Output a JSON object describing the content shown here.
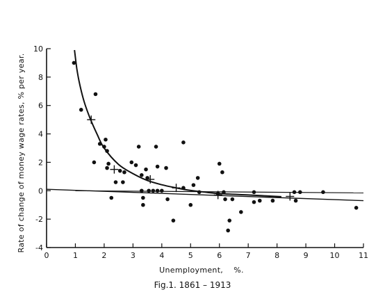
{
  "chart_data": {
    "type": "scatter",
    "xlabel": "Unemployment,    %.",
    "ylabel": "Rate of change of money wage rates, % per year.",
    "caption": "Fig.1. 1861 – 1913",
    "xlim": [
      0,
      11
    ],
    "ylim": [
      -4,
      10
    ],
    "xticks": [
      0,
      1,
      2,
      3,
      4,
      5,
      6,
      7,
      8,
      9,
      10,
      11
    ],
    "yticks": [
      -4,
      -2,
      0,
      2,
      4,
      6,
      8,
      10
    ],
    "grid": false,
    "points": [
      {
        "x": 0.95,
        "y": 9.0
      },
      {
        "x": 1.2,
        "y": 5.7
      },
      {
        "x": 1.7,
        "y": 6.8
      },
      {
        "x": 1.65,
        "y": 2.0
      },
      {
        "x": 1.85,
        "y": 3.3
      },
      {
        "x": 2.0,
        "y": 3.1
      },
      {
        "x": 2.05,
        "y": 3.6
      },
      {
        "x": 2.1,
        "y": 2.8
      },
      {
        "x": 2.15,
        "y": 1.9
      },
      {
        "x": 2.1,
        "y": 1.6
      },
      {
        "x": 2.25,
        "y": -0.5
      },
      {
        "x": 2.4,
        "y": 0.6
      },
      {
        "x": 2.55,
        "y": 1.4
      },
      {
        "x": 2.65,
        "y": 0.6
      },
      {
        "x": 2.7,
        "y": 1.3
      },
      {
        "x": 2.95,
        "y": 2.0
      },
      {
        "x": 3.1,
        "y": 1.8
      },
      {
        "x": 3.2,
        "y": 3.1
      },
      {
        "x": 3.3,
        "y": 1.1
      },
      {
        "x": 3.3,
        "y": 0.0
      },
      {
        "x": 3.35,
        "y": -0.5
      },
      {
        "x": 3.35,
        "y": -1.0
      },
      {
        "x": 3.45,
        "y": 1.5
      },
      {
        "x": 3.5,
        "y": 0.9
      },
      {
        "x": 3.55,
        "y": 0.0
      },
      {
        "x": 3.7,
        "y": 0.0
      },
      {
        "x": 3.8,
        "y": 3.1
      },
      {
        "x": 3.85,
        "y": 1.7
      },
      {
        "x": 3.85,
        "y": 0.0
      },
      {
        "x": 4.0,
        "y": 0.0
      },
      {
        "x": 4.15,
        "y": 1.6
      },
      {
        "x": 4.2,
        "y": -0.6
      },
      {
        "x": 4.4,
        "y": -2.1
      },
      {
        "x": 4.75,
        "y": 3.4
      },
      {
        "x": 4.75,
        "y": 0.2
      },
      {
        "x": 5.0,
        "y": -1.0
      },
      {
        "x": 5.1,
        "y": 0.4
      },
      {
        "x": 5.25,
        "y": 0.9
      },
      {
        "x": 5.3,
        "y": -0.1
      },
      {
        "x": 5.95,
        "y": -0.2
      },
      {
        "x": 6.0,
        "y": 1.9
      },
      {
        "x": 6.1,
        "y": 1.3
      },
      {
        "x": 6.15,
        "y": -0.1
      },
      {
        "x": 6.2,
        "y": -0.6
      },
      {
        "x": 6.3,
        "y": -2.8
      },
      {
        "x": 6.35,
        "y": -2.1
      },
      {
        "x": 6.45,
        "y": -0.6
      },
      {
        "x": 6.75,
        "y": -1.5
      },
      {
        "x": 7.2,
        "y": -0.1
      },
      {
        "x": 7.2,
        "y": -0.8
      },
      {
        "x": 7.4,
        "y": -0.7
      },
      {
        "x": 7.85,
        "y": -0.7
      },
      {
        "x": 8.6,
        "y": -0.1
      },
      {
        "x": 8.65,
        "y": -0.7
      },
      {
        "x": 8.8,
        "y": -0.1
      },
      {
        "x": 9.6,
        "y": -0.1
      },
      {
        "x": 10.75,
        "y": -1.2
      }
    ],
    "crosses": [
      {
        "x": 1.55,
        "y": 5.0
      },
      {
        "x": 2.35,
        "y": 1.5
      },
      {
        "x": 3.6,
        "y": 0.8
      },
      {
        "x": 4.5,
        "y": 0.2
      },
      {
        "x": 5.95,
        "y": -0.3
      },
      {
        "x": 8.45,
        "y": -0.4
      }
    ],
    "fitted_curve": [
      [
        0.97,
        9.9
      ],
      [
        1.05,
        8.6
      ],
      [
        1.15,
        7.5
      ],
      [
        1.3,
        6.3
      ],
      [
        1.5,
        5.15
      ],
      [
        1.75,
        4.0
      ],
      [
        2.0,
        3.0
      ],
      [
        2.5,
        1.85
      ],
      [
        3.0,
        1.2
      ],
      [
        3.5,
        0.72
      ],
      [
        4.0,
        0.42
      ],
      [
        4.5,
        0.2
      ],
      [
        5.0,
        0.02
      ],
      [
        5.5,
        -0.1
      ],
      [
        6.0,
        -0.2
      ],
      [
        7.0,
        -0.3
      ],
      [
        8.15,
        -0.42
      ]
    ],
    "trend_line": [
      [
        0.0,
        0.1
      ],
      [
        11.0,
        -0.7
      ]
    ],
    "baseline_line": [
      [
        1.0,
        0.0
      ],
      [
        11.0,
        -0.15
      ]
    ]
  }
}
